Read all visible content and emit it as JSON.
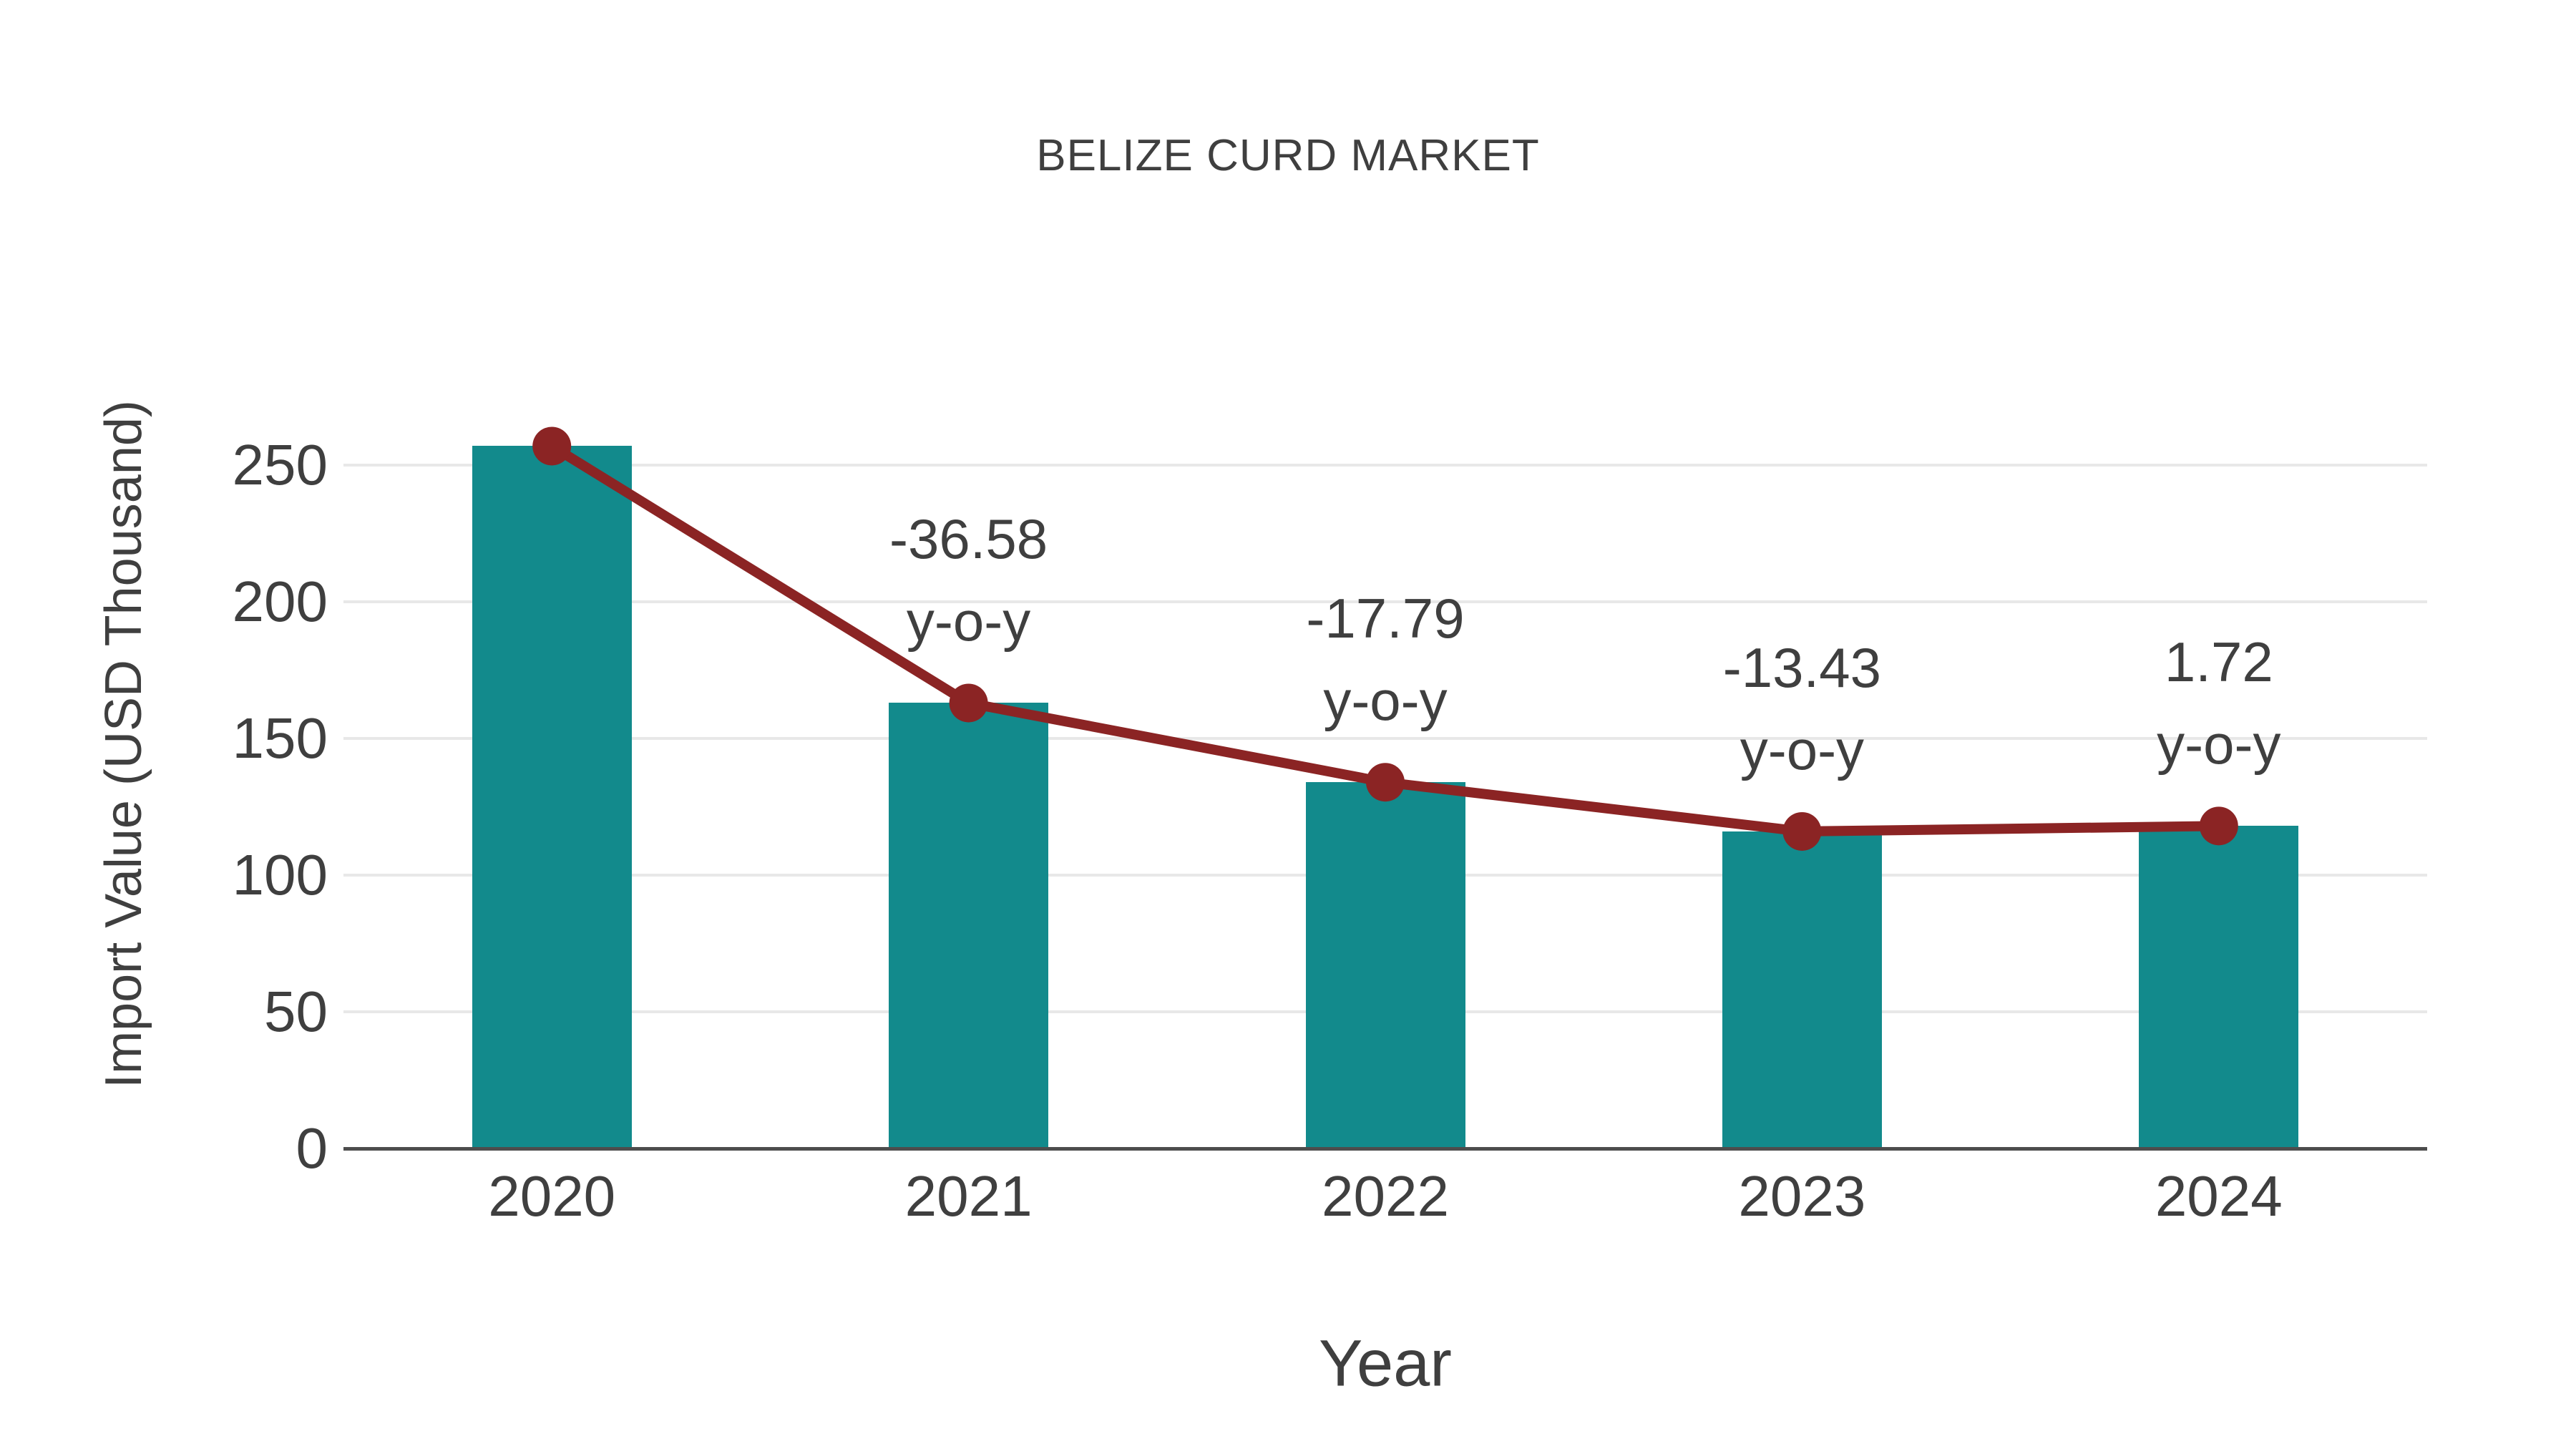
{
  "title": "BELIZE CURD MARKET",
  "chart_data": {
    "type": "bar",
    "title": "BELIZE CURD MARKET",
    "xlabel": "Year",
    "ylabel": "Import Value (USD Thousand)",
    "categories": [
      "2020",
      "2021",
      "2022",
      "2023",
      "2024"
    ],
    "series": [
      {
        "name": "import-value-bars",
        "type": "bar",
        "values": [
          257,
          163,
          134,
          116,
          118
        ]
      },
      {
        "name": "import-value-trend-line",
        "type": "line",
        "values": [
          257,
          163,
          134,
          116,
          118
        ]
      }
    ],
    "annotations": [
      {
        "category": "2021",
        "value_label": "-36.58",
        "sub_label": "y-o-y"
      },
      {
        "category": "2022",
        "value_label": "-17.79",
        "sub_label": "y-o-y"
      },
      {
        "category": "2023",
        "value_label": "-13.43",
        "sub_label": "y-o-y"
      },
      {
        "category": "2024",
        "value_label": "1.72",
        "sub_label": "y-o-y"
      }
    ],
    "yticks": [
      0,
      50,
      100,
      150,
      200,
      250
    ],
    "ylim": [
      0,
      260
    ],
    "grid": true,
    "legend": false,
    "colors": {
      "bar": "#128A8C",
      "line": "#8B2424",
      "marker": "#8B2424",
      "text": "#3F3F3F",
      "grid": "#E8E8E8",
      "axis": "#4D4D4D",
      "background": "#FFFFFF"
    }
  }
}
